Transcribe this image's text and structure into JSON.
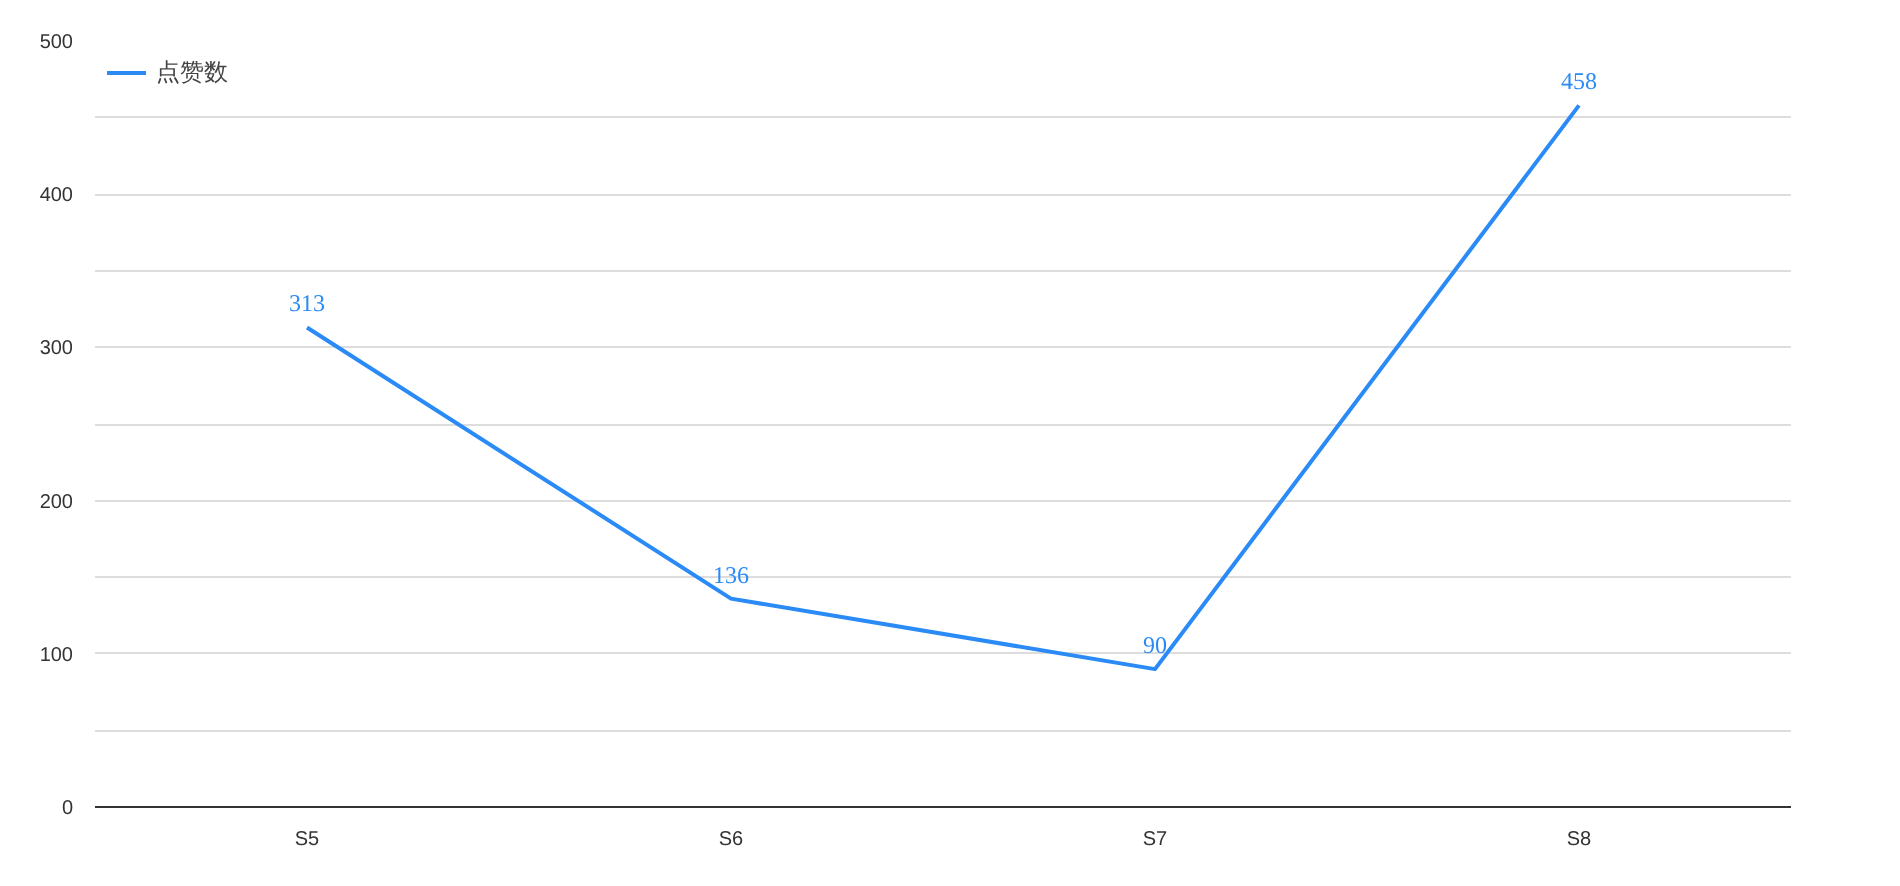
{
  "chart_data": {
    "type": "line",
    "categories": [
      "S5",
      "S6",
      "S7",
      "S8"
    ],
    "series": [
      {
        "name": "点赞数",
        "color": "#2a8af6",
        "values": [
          313,
          136,
          90,
          458
        ]
      }
    ],
    "ylim": [
      0,
      500
    ],
    "yticks": [
      0,
      {
        "value": 50,
        "label": null
      },
      100,
      {
        "value": 150,
        "label": null
      },
      200,
      {
        "value": 250,
        "label": null
      },
      300,
      {
        "value": 350,
        "label": null
      },
      400,
      {
        "value": 450,
        "label": null
      },
      500
    ],
    "grid": "y",
    "legend": "top left",
    "data_labels": true,
    "marker": "none",
    "line_style": "solid"
  }
}
